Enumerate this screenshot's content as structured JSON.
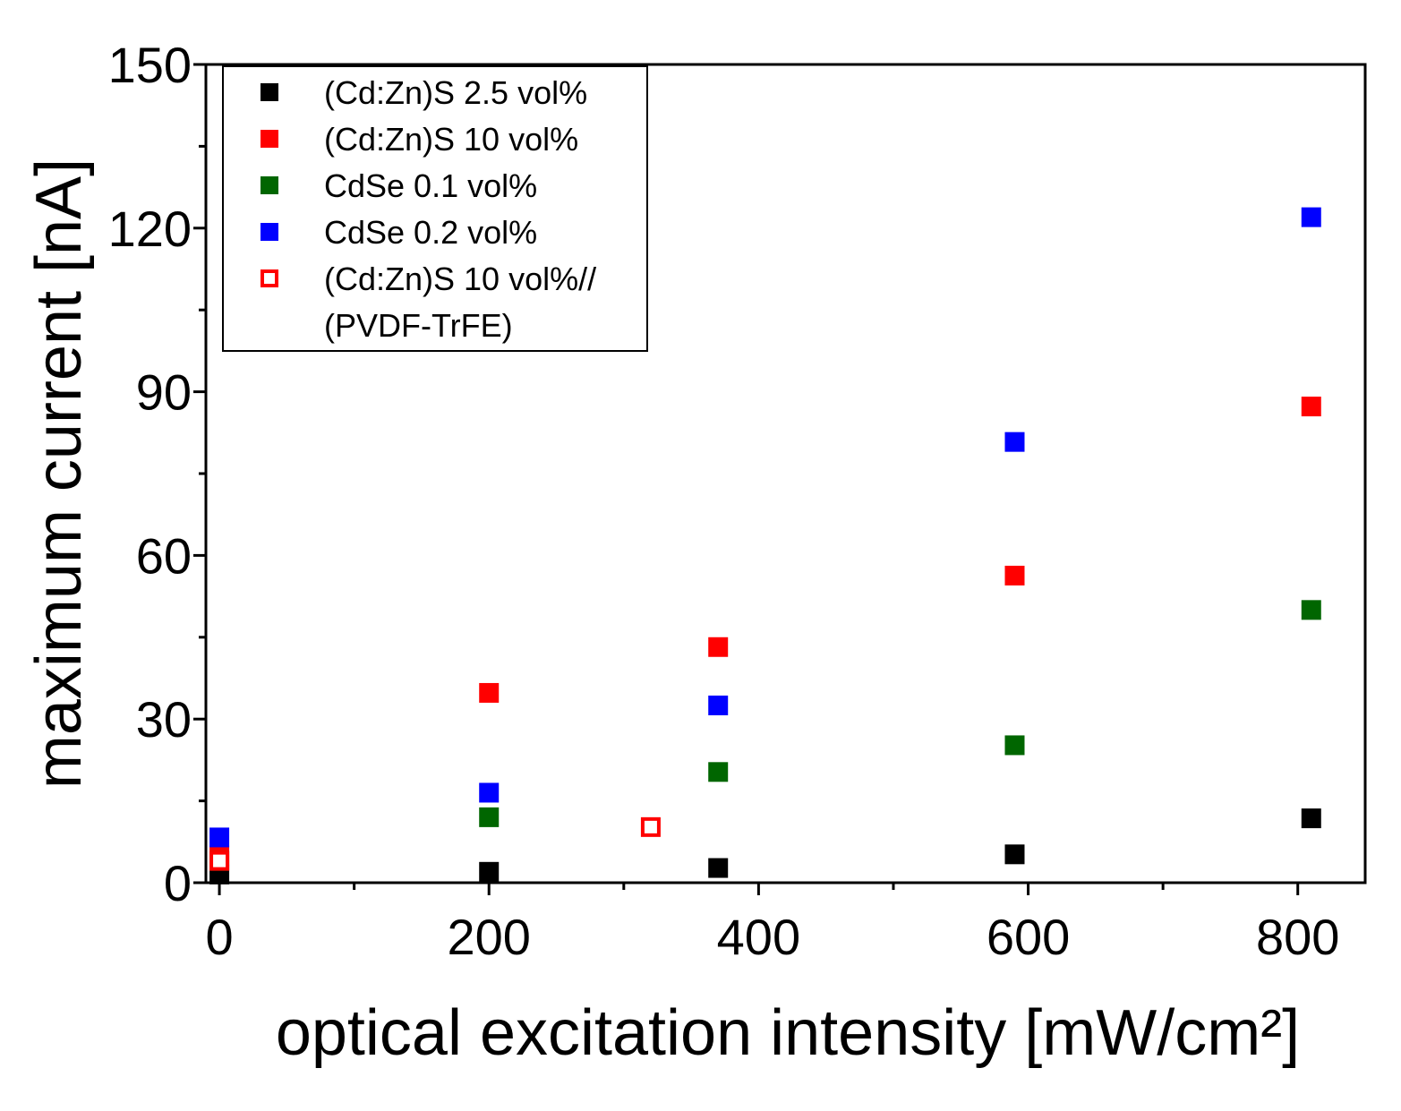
{
  "chart_data": {
    "type": "scatter",
    "title": "",
    "xlabel": "optical excitation intensity [mW/cm²]",
    "ylabel": "maximum current [nA]",
    "xlim": [
      -10,
      850
    ],
    "ylim": [
      0,
      150
    ],
    "xticks": [
      0,
      200,
      400,
      600,
      800
    ],
    "xticks_minor": [
      100,
      300,
      500,
      700
    ],
    "yticks": [
      0,
      30,
      60,
      90,
      120,
      150
    ],
    "yticks_minor": [
      15,
      45,
      75,
      105,
      135
    ],
    "xtick_labels": [
      "0",
      "200",
      "400",
      "600",
      "800"
    ],
    "ytick_labels": [
      "0",
      "30",
      "60",
      "90",
      "120",
      "150"
    ],
    "grid": false,
    "legend_position": "top-left",
    "series": [
      {
        "name": "(Cd:Zn)S 2.5 vol%",
        "color": "#000000",
        "marker": "filled-square",
        "x": [
          0,
          200,
          370,
          590,
          810
        ],
        "y": [
          1.5,
          2,
          2.7,
          5.2,
          11.8
        ]
      },
      {
        "name": "(Cd:Zn)S 10 vol%",
        "color": "#ff0000",
        "marker": "filled-square",
        "x": [
          0,
          200,
          370,
          590,
          810
        ],
        "y": [
          5,
          34.8,
          43.2,
          56.3,
          87.3
        ]
      },
      {
        "name": "CdSe 0.1 vol%",
        "color": "#006600",
        "marker": "filled-square",
        "x": [
          0,
          200,
          370,
          590,
          810
        ],
        "y": [
          4,
          12,
          20.3,
          25.2,
          50
        ]
      },
      {
        "name": "CdSe 0.2 vol%",
        "color": "#0000ff",
        "marker": "filled-square",
        "x": [
          0,
          200,
          370,
          590,
          810
        ],
        "y": [
          8.3,
          16.5,
          32.5,
          80.8,
          122
        ]
      },
      {
        "name": "(Cd:Zn)S 10 vol%//",
        "name_line2": "(PVDF-TrFE)",
        "color": "#ff0000",
        "marker": "open-square",
        "x": [
          0,
          320
        ],
        "y": [
          4,
          10.2
        ]
      }
    ]
  }
}
